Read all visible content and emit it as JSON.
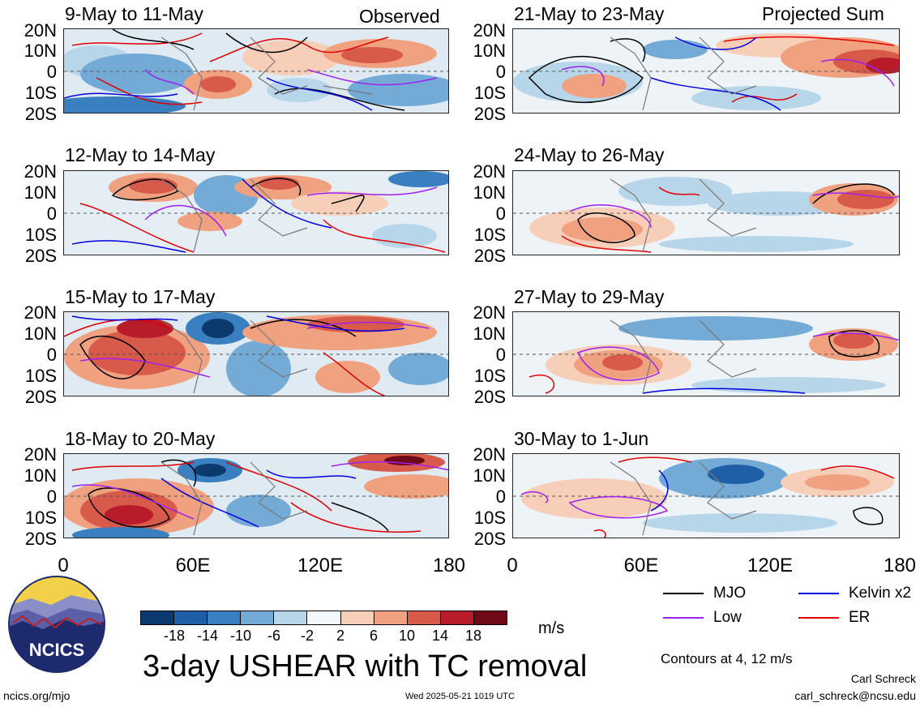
{
  "panels": [
    {
      "title": "9-May to 11-May",
      "tag": "Observed"
    },
    {
      "title": "21-May to 23-May",
      "tag": "Projected Sum"
    },
    {
      "title": "12-May to 14-May",
      "tag": ""
    },
    {
      "title": "24-May to 26-May",
      "tag": ""
    },
    {
      "title": "15-May to 17-May",
      "tag": ""
    },
    {
      "title": "27-May to 29-May",
      "tag": ""
    },
    {
      "title": "18-May to 20-May",
      "tag": ""
    },
    {
      "title": "30-May to 1-Jun",
      "tag": ""
    }
  ],
  "lat_labels": [
    "20N",
    "10N",
    "0",
    "10S",
    "20S"
  ],
  "lon_labels": [
    "0",
    "60E",
    "120E",
    "180"
  ],
  "colorbar": {
    "labels": [
      "-18",
      "-14",
      "-10",
      "-6",
      "-2",
      "2",
      "6",
      "10",
      "14",
      "18"
    ],
    "colors": [
      "#0c3a6e",
      "#1f5fa8",
      "#3a80c0",
      "#74aad6",
      "#b8d6ea",
      "#f5f8fa",
      "#f7cfb8",
      "#f0a17f",
      "#d85a4a",
      "#b81b2a",
      "#6e0a18"
    ],
    "unit": "m/s"
  },
  "main_title": "3-day USHEAR with TC removal",
  "legend": {
    "items": [
      {
        "label": "MJO",
        "color": "#000000"
      },
      {
        "label": "Kelvin x2",
        "color": "#0000e0"
      },
      {
        "label": "Low",
        "color": "#a020f0"
      },
      {
        "label": "ER",
        "color": "#e00000"
      }
    ],
    "contours_note": "Contours at 4, 12 m/s"
  },
  "logo": {
    "text": "NCICS"
  },
  "footer": {
    "left": "ncics.org/mjo",
    "center": "Wed 2025-05-21 1019 UTC",
    "author": "Carl Schreck",
    "email": "carl_schreck@ncsu.edu"
  }
}
